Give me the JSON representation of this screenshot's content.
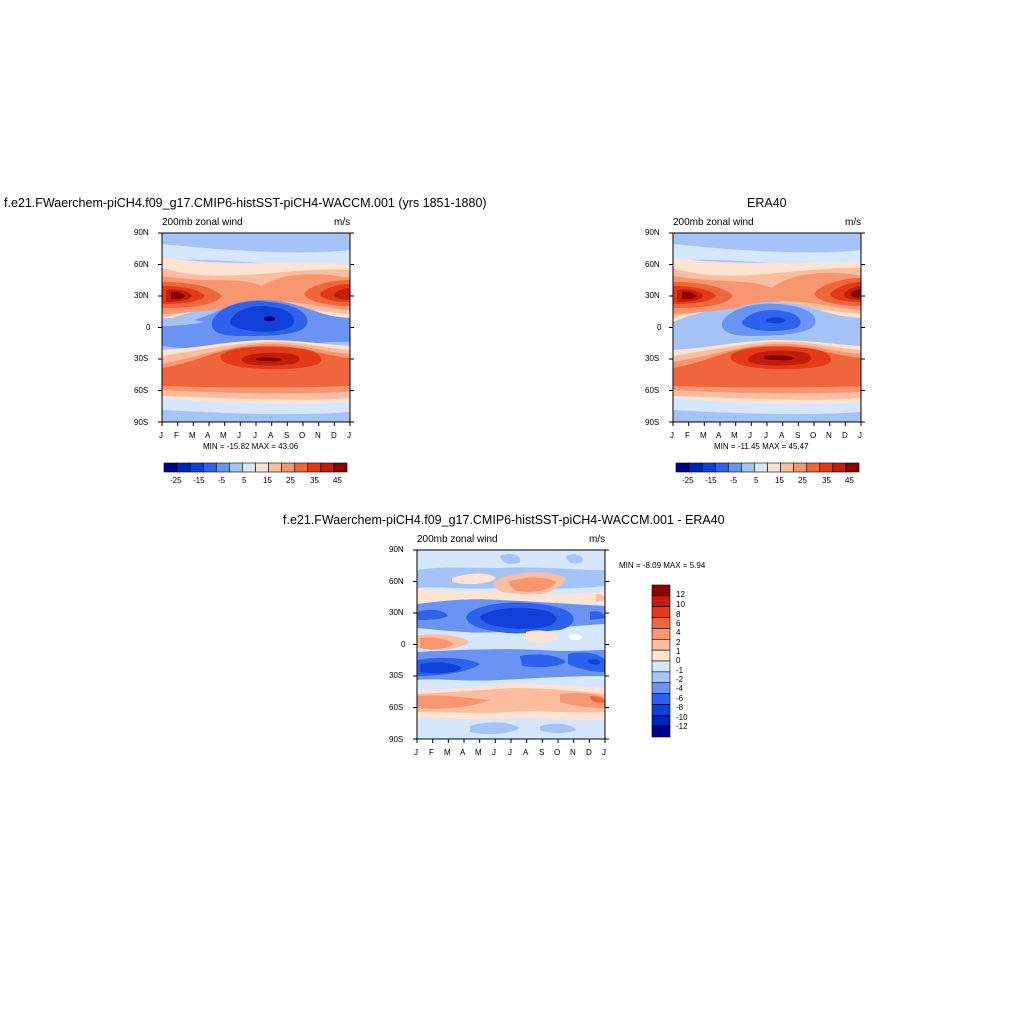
{
  "chart_data": [
    {
      "type": "heatmap",
      "title": "f.e21.FWaerchem-piCH4.f09_g17.CMIP6-histSST-piCH4-WACCM.001 (yrs 1851-1880)",
      "left_label": "200mb zonal wind",
      "right_label": "m/s",
      "x_tick_labels": [
        "J",
        "F",
        "M",
        "A",
        "M",
        "J",
        "J",
        "A",
        "S",
        "O",
        "N",
        "D",
        "J"
      ],
      "y_tick_labels": [
        "90N",
        "60N",
        "30N",
        "0",
        "30S",
        "60S",
        "90S"
      ],
      "stats": "MIN = -15.82 MAX =  43.06",
      "colorbar_labels": [
        "-25",
        "-15",
        "-5",
        "5",
        "15",
        "25",
        "35",
        "45"
      ],
      "features": [
        {
          "lat": 30,
          "lon_month": 0.5,
          "value": 43
        },
        {
          "lat": 30,
          "lon_month": 11.8,
          "value": 40
        },
        {
          "lat": 6,
          "lon_month": 6.7,
          "value": -15
        },
        {
          "lat": -30,
          "lon_month": 6.5,
          "value": 38
        },
        {
          "lat": -48,
          "lon_month": 1.0,
          "value": 32
        }
      ]
    },
    {
      "type": "heatmap",
      "title": "ERA40",
      "left_label": "200mb zonal wind",
      "right_label": "m/s",
      "x_tick_labels": [
        "J",
        "F",
        "M",
        "A",
        "M",
        "J",
        "J",
        "A",
        "S",
        "O",
        "N",
        "D",
        "J"
      ],
      "y_tick_labels": [
        "90N",
        "60N",
        "30N",
        "0",
        "30S",
        "60S",
        "90S"
      ],
      "stats": "MIN = -11.45 MAX =  45.47",
      "colorbar_labels": [
        "-25",
        "-15",
        "-5",
        "5",
        "15",
        "25",
        "35",
        "45"
      ],
      "features": [
        {
          "lat": 30,
          "lon_month": 0.6,
          "value": 45
        },
        {
          "lat": 30,
          "lon_month": 11.7,
          "value": 42
        },
        {
          "lat": 6,
          "lon_month": 6.8,
          "value": -11
        },
        {
          "lat": -30,
          "lon_month": 6.6,
          "value": 40
        },
        {
          "lat": -48,
          "lon_month": 1.0,
          "value": 30
        }
      ]
    },
    {
      "type": "heatmap",
      "title": "f.e21.FWaerchem-piCH4.f09_g17.CMIP6-histSST-piCH4-WACCM.001 - ERA40",
      "left_label": "200mb zonal wind",
      "right_label": "m/s",
      "x_tick_labels": [
        "J",
        "F",
        "M",
        "A",
        "M",
        "J",
        "J",
        "A",
        "S",
        "O",
        "N",
        "D",
        "J"
      ],
      "y_tick_labels": [
        "90N",
        "60N",
        "30N",
        "0",
        "30S",
        "60S",
        "90S"
      ],
      "stats": "MIN =  -8.09 MAX =   5.94",
      "colorbar_labels": [
        "12",
        "10",
        "8",
        "6",
        "4",
        "2",
        "1",
        "0",
        "-1",
        "-2",
        "-4",
        "-6",
        "-8",
        "-10",
        "-12"
      ]
    }
  ],
  "colors": {
    "full_scale": [
      "#00008b",
      "#0022bb",
      "#1040d8",
      "#2f62ec",
      "#6a93f4",
      "#a6c3f8",
      "#d6e6fc",
      "#fde4d2",
      "#fbbda0",
      "#f79670",
      "#f0663c",
      "#e43a17",
      "#c01e08",
      "#8b0000"
    ],
    "diff_scale": [
      "#8b0000",
      "#c01e08",
      "#e43a17",
      "#f0663c",
      "#f79670",
      "#fbbda0",
      "#fde4d2",
      "#d6e6fc",
      "#a6c3f8",
      "#6a93f4",
      "#2f62ec",
      "#1040d8",
      "#0022bb",
      "#00008b"
    ]
  }
}
